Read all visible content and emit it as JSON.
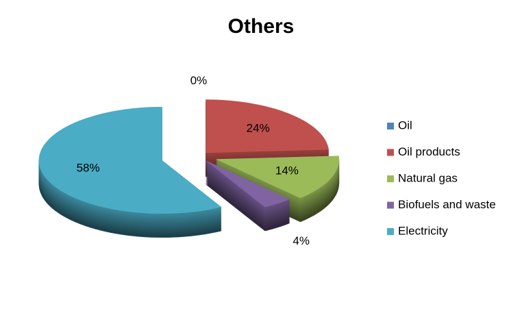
{
  "chart_data": {
    "type": "pie3d",
    "title": "Others",
    "categories": [
      "Oil",
      "Oil products",
      "Natural gas",
      "Biofuels and waste",
      "Electricity"
    ],
    "values": [
      0,
      24,
      14,
      4,
      58
    ],
    "value_labels": [
      "0%",
      "24%",
      "14%",
      "4%",
      "58%"
    ],
    "colors": [
      "#4f81bd",
      "#c0504d",
      "#9bbb59",
      "#8064a2",
      "#4bacc6"
    ],
    "legend": "right"
  }
}
